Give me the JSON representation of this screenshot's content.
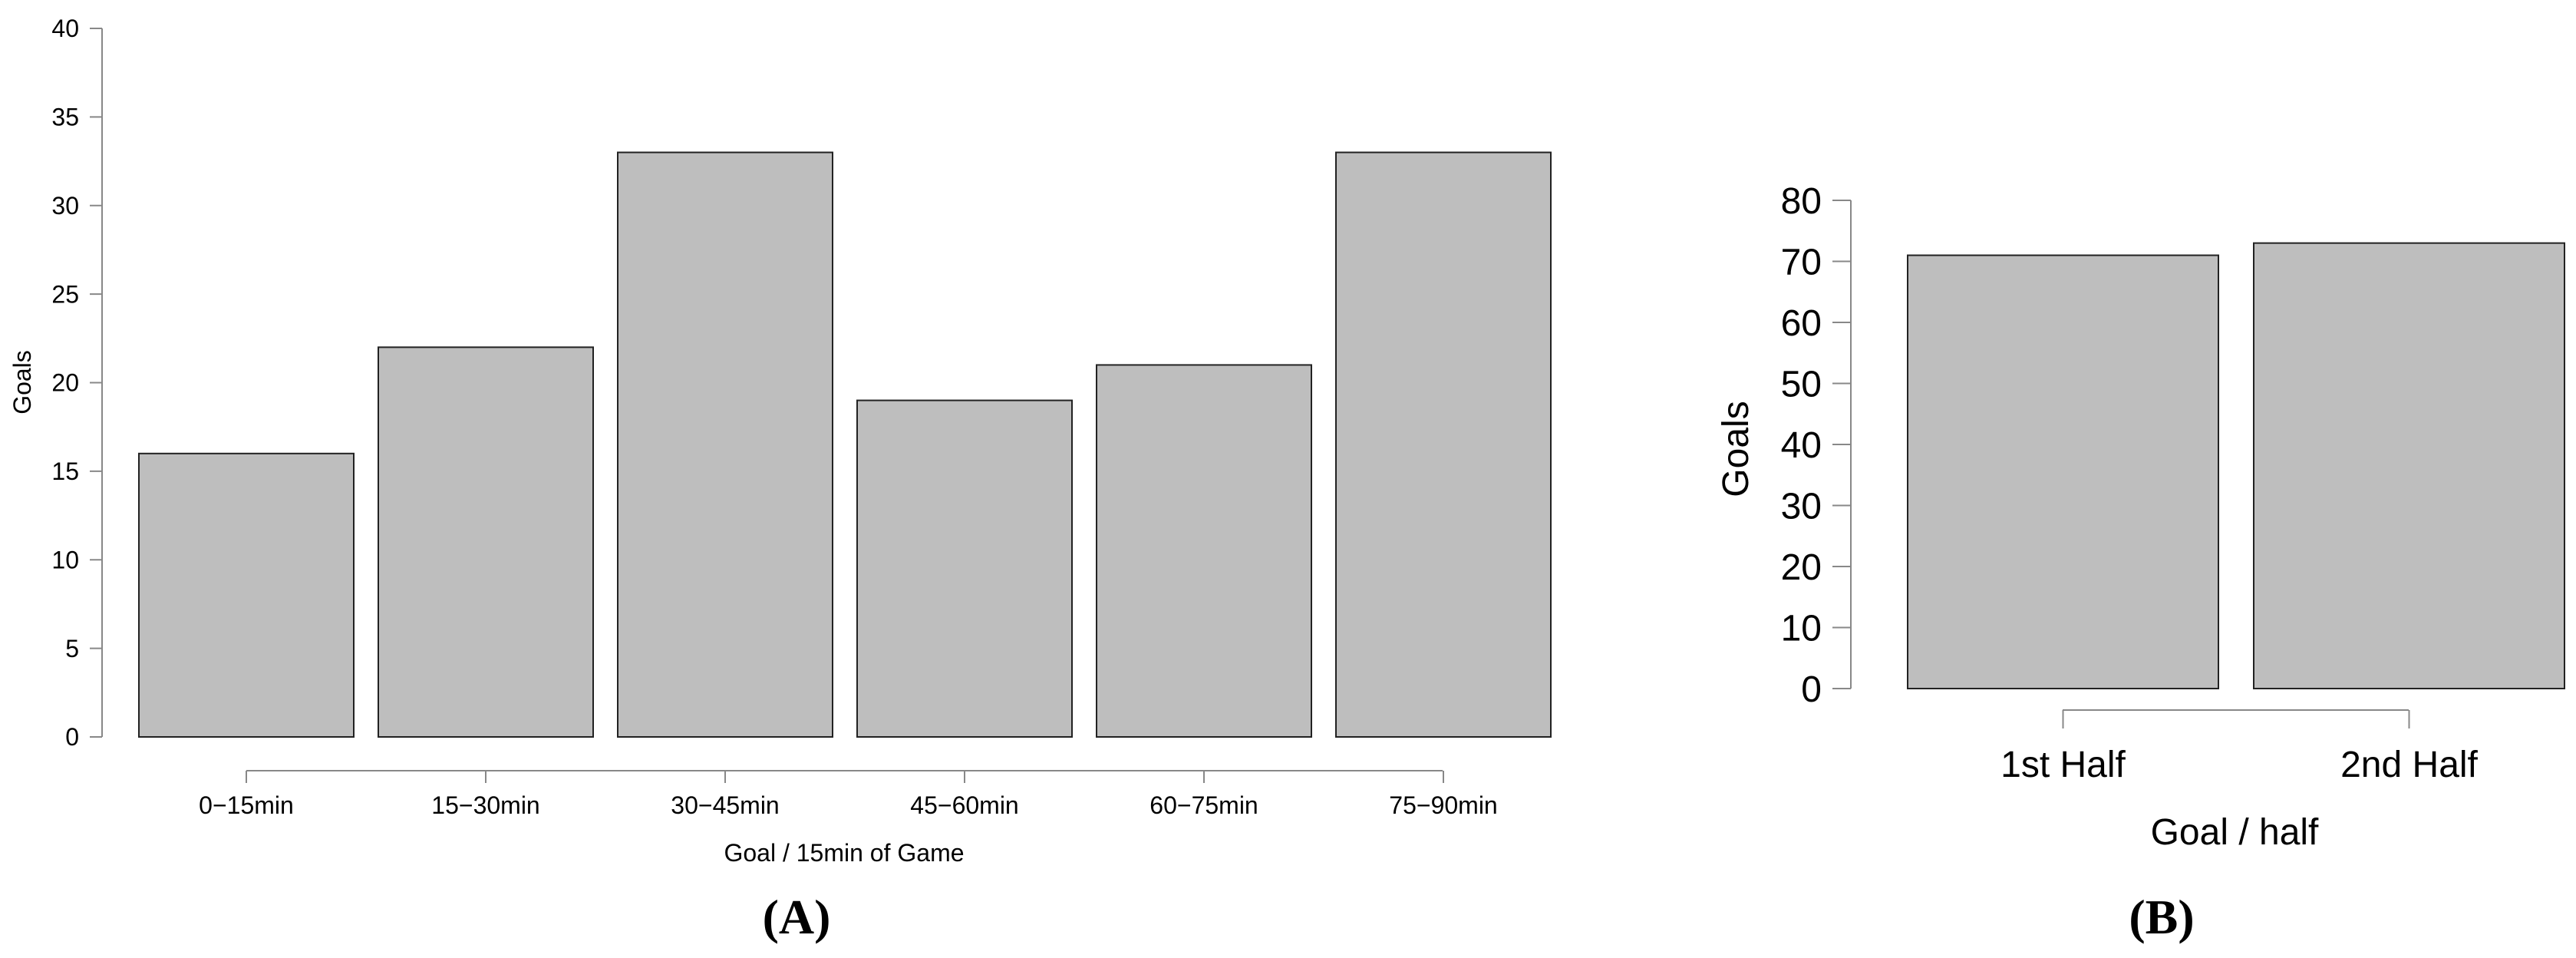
{
  "chart_data": [
    {
      "type": "bar",
      "panel": "(A)",
      "categories": [
        "0−15min",
        "15−30min",
        "30−45min",
        "45−60min",
        "60−75min",
        "75−90min"
      ],
      "values": [
        16,
        22,
        33,
        19,
        21,
        33
      ],
      "xlabel": "Goal / 15min of Game",
      "ylabel": "Goals",
      "ylim": [
        0,
        40
      ],
      "yticks": [
        0,
        5,
        10,
        15,
        20,
        25,
        30,
        35,
        40
      ],
      "bar_color": "#bebebe",
      "grid": false
    },
    {
      "type": "bar",
      "panel": "(B)",
      "categories": [
        "1st Half",
        "2nd Half"
      ],
      "values": [
        71,
        73
      ],
      "xlabel": "Goal / half",
      "ylabel": "Goals",
      "ylim": [
        0,
        80
      ],
      "yticks": [
        0,
        10,
        20,
        30,
        40,
        50,
        60,
        70,
        80
      ],
      "bar_color": "#bebebe",
      "grid": false
    }
  ]
}
